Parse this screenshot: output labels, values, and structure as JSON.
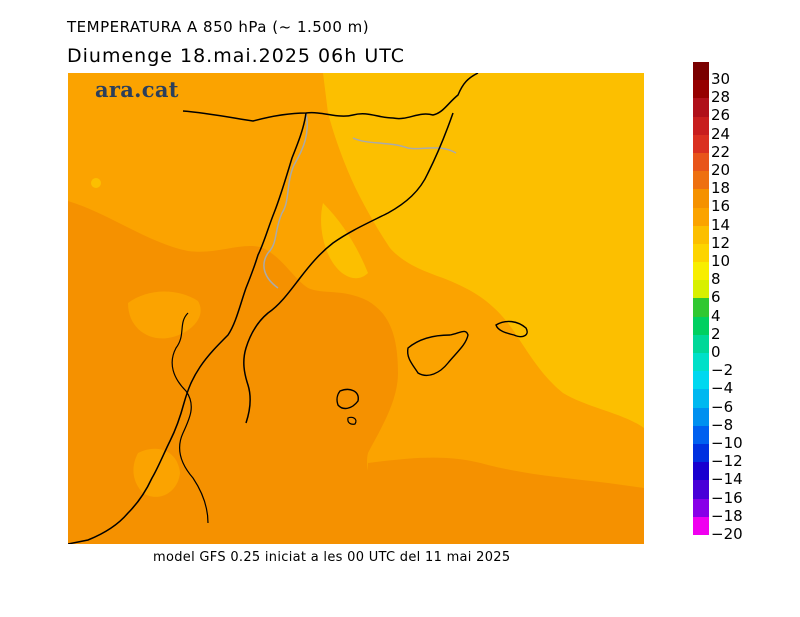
{
  "header": {
    "title": "TEMPERATURA A 850 hPa (~ 1.500 m)",
    "subtitle": "Diumenge  18.mai.2025 06h UTC"
  },
  "map": {
    "logo_text": "ara.cat",
    "colors": {
      "field_12_14": "#fcbf00",
      "field_14_16": "#fba300",
      "field_16_18": "#f59100",
      "coastline": "#000000",
      "border": "#aaaaaa"
    }
  },
  "footer": {
    "caption": "model GFS 0.25 iniciat a les 00 UTC del 11 mai 2025"
  },
  "legend": {
    "labels": [
      "30",
      "28",
      "26",
      "24",
      "22",
      "20",
      "18",
      "16",
      "14",
      "12",
      "10",
      "8",
      "6",
      "4",
      "2",
      "0",
      "-2",
      "-4",
      "-6",
      "-8",
      "-10",
      "-12",
      "-14",
      "-16",
      "-18",
      "-20"
    ],
    "colors": [
      "#7a0000",
      "#960000",
      "#b0101a",
      "#c81e1e",
      "#da3020",
      "#e8541a",
      "#ee7010",
      "#f59100",
      "#fba300",
      "#fcbf00",
      "#fdd400",
      "#f8ee00",
      "#d8f000",
      "#30c830",
      "#00d060",
      "#00d898",
      "#00e0c8",
      "#00d8f0",
      "#00b8f0",
      "#0090f0",
      "#0060f0",
      "#0030e0",
      "#1800d0",
      "#4800d8",
      "#8800e8",
      "#f000f0"
    ]
  }
}
